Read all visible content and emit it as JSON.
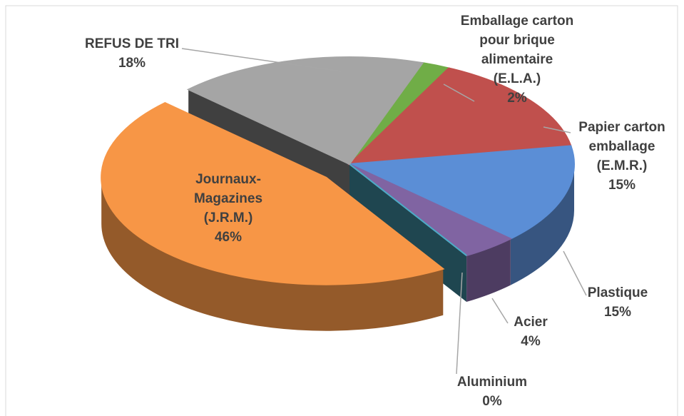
{
  "chart_data": {
    "type": "pie3d",
    "categories": [
      "Emballage carton pour brique alimentaire (E.L.A.)",
      "Papier carton emballage (E.M.R.)",
      "Plastique",
      "Acier",
      "Aluminium",
      "Journaux-Magazines (J.R.M.)",
      "REFUS DE TRI"
    ],
    "values": [
      2,
      15,
      15,
      4,
      0,
      46,
      18
    ],
    "value_labels": [
      "2%",
      "15%",
      "15%",
      "4%",
      "0%",
      "46%",
      "18%"
    ],
    "colors": [
      "#70ad47",
      "#c0504d",
      "#5b8ed6",
      "#8064a2",
      "#4bacc6",
      "#f79646",
      "#a5a5a5"
    ],
    "exploded": "Journaux-Magazines (J.R.M.)"
  }
}
